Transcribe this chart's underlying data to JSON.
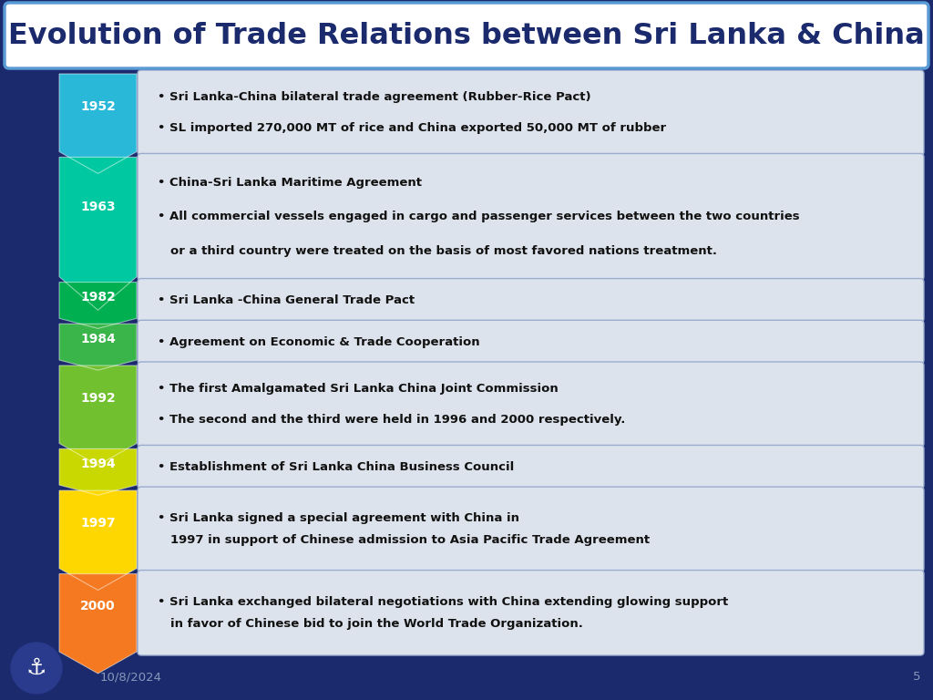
{
  "title": "Evolution of Trade Relations between Sri Lanka & China",
  "background_color": "#1a2a6c",
  "title_bg": "#ffffff",
  "title_color": "#1a2a6c",
  "footer_date": "10/8/2024",
  "footer_page": "5",
  "events": [
    {
      "year": "1952",
      "arrow_color": "#29b8d8",
      "lines": [
        "• Sri Lanka-China bilateral trade agreement (Rubber-Rice Pact)",
        "• SL imported 270,000 MT of rice and China exported 50,000 MT of rubber"
      ],
      "n_content_lines": 2
    },
    {
      "year": "1963",
      "arrow_color": "#00c8a0",
      "lines": [
        "• China-Sri Lanka Maritime Agreement",
        "• All commercial vessels engaged in cargo and passenger services between the two countries or a third country were treated on the basis of most favored nations treatment."
      ],
      "n_content_lines": 3
    },
    {
      "year": "1982",
      "arrow_color": "#00b050",
      "lines": [
        "• Sri Lanka -China General Trade Pact"
      ],
      "n_content_lines": 1
    },
    {
      "year": "1984",
      "arrow_color": "#39b54a",
      "lines": [
        "• Agreement on Economic & Trade Cooperation"
      ],
      "n_content_lines": 1
    },
    {
      "year": "1992",
      "arrow_color": "#70c030",
      "lines": [
        "• The first Amalgamated Sri Lanka China Joint Commission",
        "• The second and the third were held in 1996 and 2000 respectively."
      ],
      "n_content_lines": 2
    },
    {
      "year": "1994",
      "arrow_color": "#c8d800",
      "lines": [
        "• Establishment of Sri Lanka China Business Council"
      ],
      "n_content_lines": 1
    },
    {
      "year": "1997",
      "arrow_color": "#ffd700",
      "lines": [
        "• Sri Lanka signed a special agreement with China in 1997 in support of Chinese admission to Asia Pacific Trade Agreement"
      ],
      "n_content_lines": 2
    },
    {
      "year": "2000",
      "arrow_color": "#f47920",
      "lines": [
        "• Sri Lanka exchanged bilateral negotiations with China extending glowing support in favor of Chinese bid to join the World Trade Organization."
      ],
      "n_content_lines": 2
    }
  ]
}
